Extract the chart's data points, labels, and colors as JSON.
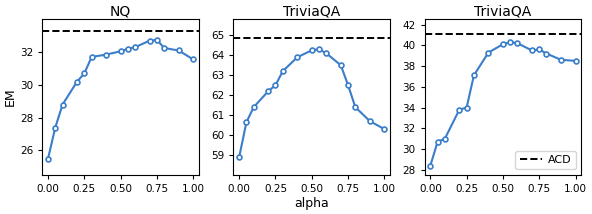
{
  "panels": [
    {
      "title": "NQ",
      "ylabel": "EM",
      "xlabel": "",
      "x": [
        0.0,
        0.05,
        0.1,
        0.2,
        0.25,
        0.3,
        0.4,
        0.5,
        0.55,
        0.6,
        0.7,
        0.75,
        0.8,
        0.9,
        1.0
      ],
      "y": [
        25.5,
        27.4,
        28.8,
        30.2,
        30.7,
        31.7,
        31.85,
        32.05,
        32.2,
        32.3,
        32.7,
        32.75,
        32.25,
        32.1,
        31.55
      ],
      "dashed": 33.3,
      "ylim": [
        24.5,
        34.0
      ],
      "yticks": [
        26,
        28,
        30,
        32
      ],
      "show_xlabel": false,
      "legend": false
    },
    {
      "title": "TriviaQA",
      "ylabel": "",
      "xlabel": "alpha",
      "x": [
        0.0,
        0.05,
        0.1,
        0.2,
        0.25,
        0.3,
        0.4,
        0.5,
        0.55,
        0.6,
        0.7,
        0.75,
        0.8,
        0.9,
        1.0
      ],
      "y": [
        58.9,
        60.65,
        61.4,
        62.2,
        62.5,
        63.2,
        63.9,
        64.25,
        64.3,
        64.1,
        63.5,
        62.5,
        61.4,
        60.7,
        60.3
      ],
      "dashed": 64.85,
      "ylim": [
        58.0,
        65.8
      ],
      "yticks": [
        59,
        60,
        61,
        62,
        63,
        64,
        65
      ],
      "show_xlabel": true,
      "legend": false
    },
    {
      "title": "TriviaQA",
      "ylabel": "",
      "xlabel": "",
      "x": [
        0.0,
        0.05,
        0.1,
        0.2,
        0.25,
        0.3,
        0.4,
        0.5,
        0.55,
        0.6,
        0.7,
        0.75,
        0.8,
        0.9,
        1.0
      ],
      "y": [
        28.4,
        30.7,
        31.0,
        33.8,
        34.0,
        37.1,
        39.3,
        40.1,
        40.3,
        40.2,
        39.5,
        39.6,
        39.2,
        38.6,
        38.5
      ],
      "dashed": 41.1,
      "ylim": [
        27.5,
        42.5
      ],
      "yticks": [
        28,
        30,
        32,
        34,
        36,
        38,
        40,
        42
      ],
      "show_xlabel": false,
      "legend": true
    }
  ],
  "line_color": "#3a7dc9",
  "dashed_color": "black",
  "marker": "o",
  "marker_size": 3.5,
  "marker_facecolor": "white",
  "marker_edgecolor": "#3a7dc9",
  "marker_edgewidth": 1.2,
  "linewidth": 1.5,
  "figsize": [
    5.92,
    2.14
  ],
  "dpi": 100
}
